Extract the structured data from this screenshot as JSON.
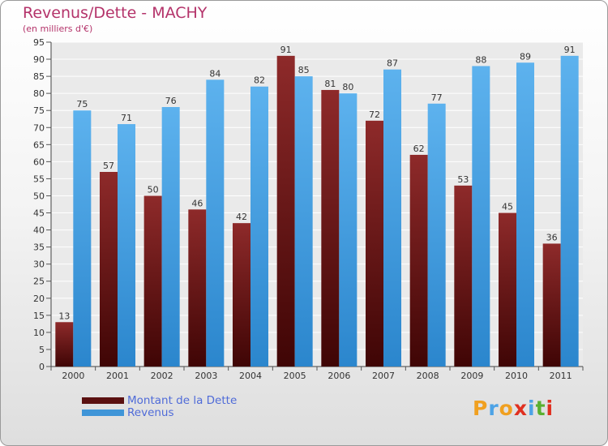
{
  "chart_data": {
    "type": "bar",
    "title": "Revenus/Dette - MACHY",
    "subtitle": "(en milliers d'€)",
    "categories": [
      "2000",
      "2001",
      "2002",
      "2003",
      "2004",
      "2005",
      "2006",
      "2007",
      "2008",
      "2009",
      "2010",
      "2011"
    ],
    "series": [
      {
        "name": "Montant de la Dette",
        "values": [
          13,
          57,
          50,
          46,
          42,
          91,
          81,
          72,
          62,
          53,
          45,
          36
        ],
        "color": "#7d1c1c"
      },
      {
        "name": "Revenus",
        "values": [
          75,
          71,
          76,
          84,
          82,
          85,
          80,
          87,
          77,
          88,
          89,
          91
        ],
        "color": "#4da3e6"
      }
    ],
    "ylim": [
      0,
      95
    ],
    "ytick_step": 5,
    "grid": true,
    "legend_position": "bottom-left"
  },
  "logo": {
    "letters": [
      {
        "char": "P",
        "color": "#f0a020"
      },
      {
        "char": "r",
        "color": "#4da3e6"
      },
      {
        "char": "o",
        "color": "#f0a020"
      },
      {
        "char": "x",
        "color": "#e03020"
      },
      {
        "char": "i",
        "color": "#4da3e6"
      },
      {
        "char": "t",
        "color": "#5ab030"
      },
      {
        "char": "i",
        "color": "#e03020"
      }
    ]
  }
}
